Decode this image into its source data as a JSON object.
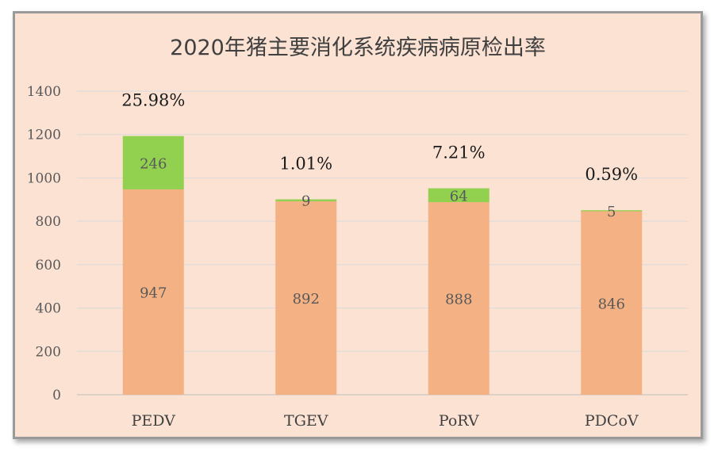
{
  "chart_data": {
    "type": "bar",
    "stacked": true,
    "title": "2020年猪主要消化系统疾病病原检出率",
    "categories": [
      "PEDV",
      "TGEV",
      "PoRV",
      "PDCoV"
    ],
    "series": [
      {
        "values": [
          947,
          892,
          888,
          846
        ],
        "color": "#f4b183"
      },
      {
        "values": [
          246,
          9,
          64,
          5
        ],
        "color": "#92d050"
      }
    ],
    "annotations": [
      "25.98%",
      "1.01%",
      "7.21%",
      "0.59%"
    ],
    "ylim": [
      0,
      1400
    ],
    "yticks": [
      "0",
      "200",
      "400",
      "600",
      "800",
      "1000",
      "1200",
      "1400"
    ],
    "grid": true,
    "legend": "none"
  }
}
